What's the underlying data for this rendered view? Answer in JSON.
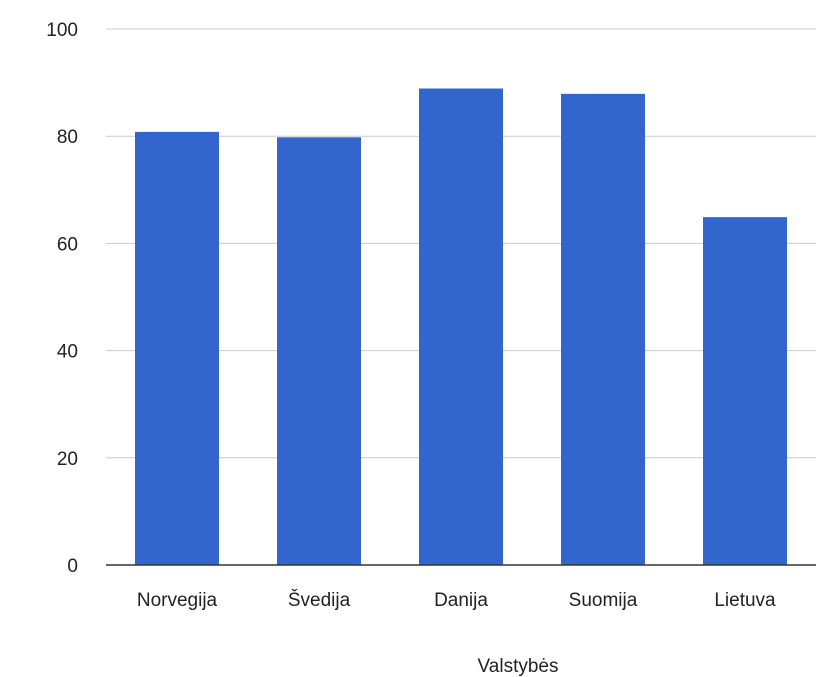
{
  "chart_data": {
    "type": "bar",
    "categories": [
      "Norvegija",
      "Švedija",
      "Danija",
      "Suomija",
      "Lietuva"
    ],
    "values": [
      80.8,
      79.8,
      88.9,
      87.9,
      64.9
    ],
    "xlabel": "Valstybės",
    "ylabel": "",
    "ylim": [
      0,
      100
    ],
    "yticks": [
      "0",
      "20",
      "40",
      "60",
      "80",
      "100"
    ],
    "grid": true,
    "legend": "none",
    "bar_color": "#3366cc",
    "grid_color": "#cccccc",
    "axis_color": "#333333"
  }
}
